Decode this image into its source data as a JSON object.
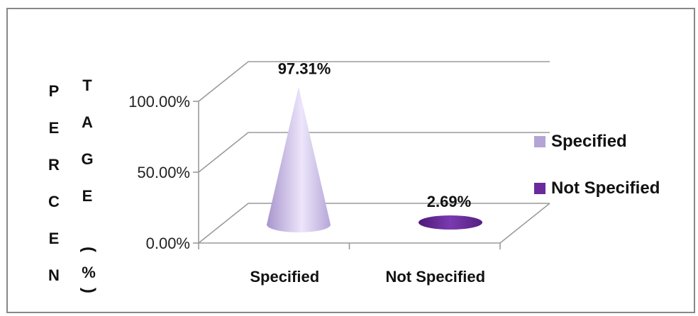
{
  "chart_data": {
    "type": "bar",
    "subtype": "3d-cone",
    "title": "",
    "xlabel": "",
    "ylabel_col1": [
      "P",
      "E",
      "R",
      "C",
      "E",
      "N"
    ],
    "ylabel_col2": [
      "T",
      "A",
      "G",
      "E"
    ],
    "ylabel_unit": "%",
    "ylabel_paren_open": "(",
    "ylabel_paren_close": ")",
    "ylim": [
      0,
      1
    ],
    "y_ticks": [
      "0.00%",
      "50.00%",
      "100.00%"
    ],
    "y_tick_values": [
      0,
      0.5,
      1
    ],
    "grid": true,
    "categories": [
      "Specified",
      "Not Specified"
    ],
    "values": [
      0.9731,
      0.0269
    ],
    "data_labels": [
      "97.31%",
      "2.69%"
    ],
    "colors": [
      "#c8b8e8",
      "#6a2a9c"
    ],
    "legend": {
      "position": "right",
      "entries": [
        "Specified",
        "Not Specified"
      ]
    }
  }
}
